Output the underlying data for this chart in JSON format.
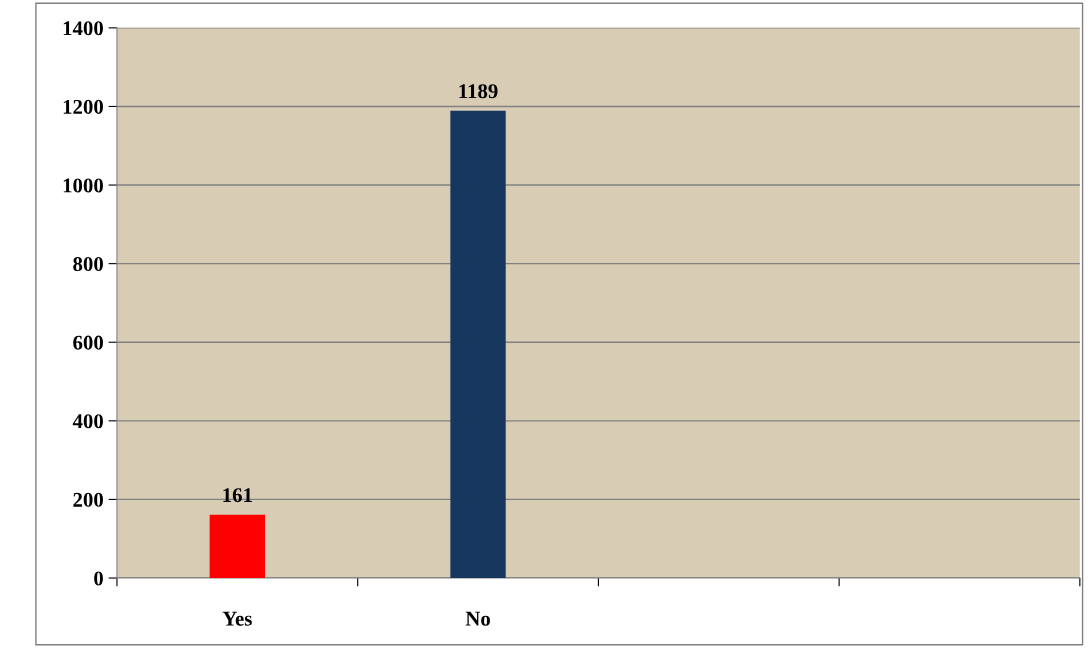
{
  "chart_data": {
    "type": "bar",
    "categories": [
      "Yes",
      "No",
      null,
      null
    ],
    "values": [
      161,
      1189,
      null,
      null
    ],
    "colors": [
      "#ff0000",
      "#17375e",
      null,
      null
    ],
    "ylim": [
      0,
      1400
    ],
    "yticks": [
      0,
      200,
      400,
      600,
      800,
      1000,
      1200,
      1400
    ],
    "grid": "y",
    "data_labels": true
  }
}
